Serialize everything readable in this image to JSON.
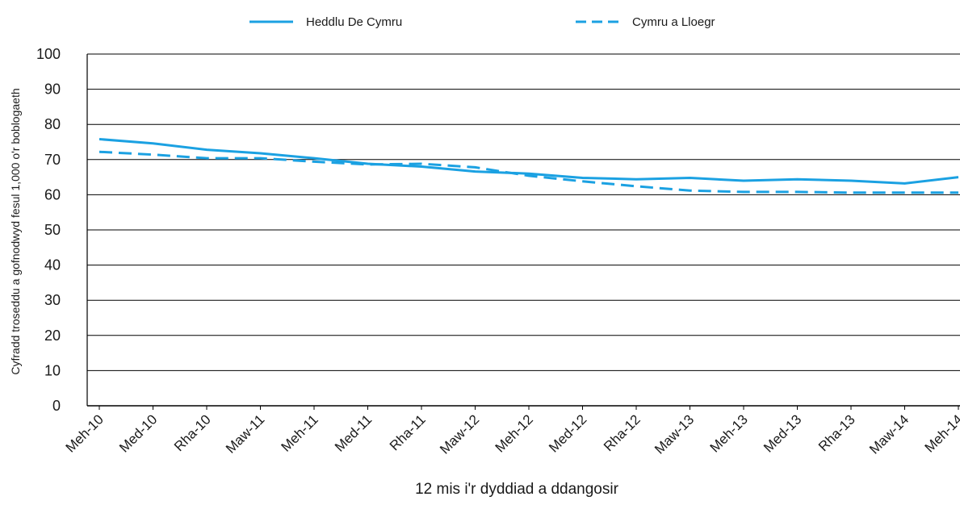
{
  "chart_data": {
    "type": "line",
    "title": "",
    "xlabel": "12 mis i'r dyddiad a ddangosir",
    "ylabel": "Cyfradd troseddu a gofnodwyd fesul 1,000 o'r boblogaeth",
    "ylim": [
      0,
      100
    ],
    "yticks": [
      "0",
      "10",
      "20",
      "30",
      "40",
      "50",
      "60",
      "70",
      "80",
      "90",
      "100"
    ],
    "grid": true,
    "legend_position": "top-center",
    "categories": [
      "Meh-10",
      "Med-10",
      "Rha-10",
      "Maw-11",
      "Meh-11",
      "Med-11",
      "Rha-11",
      "Maw-12",
      "Meh-12",
      "Med-12",
      "Rha-12",
      "Maw-13",
      "Meh-13",
      "Med-13",
      "Rha-13",
      "Maw-14",
      "Meh-14"
    ],
    "series": [
      {
        "name": "Heddlu De Cymru",
        "style": "solid",
        "color": "#1ba1e2",
        "values": [
          75.8,
          74.6,
          72.8,
          71.8,
          70.4,
          68.8,
          68.0,
          66.6,
          66.0,
          64.8,
          64.4,
          64.8,
          64.0,
          64.4,
          64.0,
          63.2,
          65.0
        ]
      },
      {
        "name": "Cymru a Lloegr",
        "style": "dashed",
        "color": "#1ba1e2",
        "values": [
          72.2,
          71.4,
          70.4,
          70.4,
          69.4,
          68.6,
          68.8,
          67.8,
          65.4,
          63.8,
          62.4,
          61.2,
          60.8,
          60.8,
          60.6,
          60.6,
          60.6
        ]
      }
    ]
  }
}
